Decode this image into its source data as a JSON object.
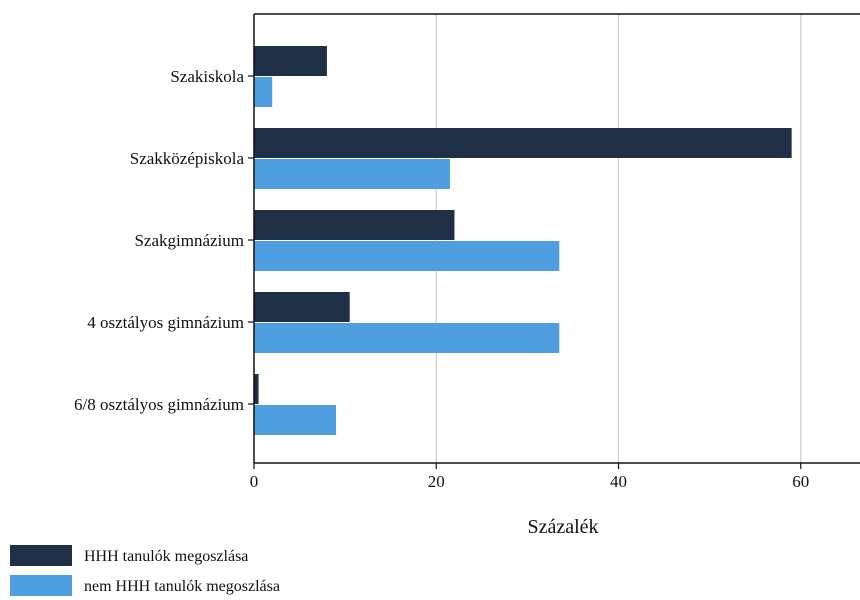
{
  "chart_data": {
    "type": "bar",
    "orientation": "horizontal",
    "categories": [
      "Szakiskola",
      "Szakközépiskola",
      "Szakgimnázium",
      "4 osztályos gimnázium",
      "6/8 osztályos gimnázium"
    ],
    "series": [
      {
        "name": "HHH tanulók megoszlása",
        "color": "#1f2f45",
        "values": [
          8,
          59,
          22,
          10.5,
          0.5
        ]
      },
      {
        "name": "nem HHH tanulók megoszlása",
        "color": "#4f9fe0",
        "values": [
          2,
          21.5,
          33.5,
          33.5,
          9
        ]
      }
    ],
    "xlabel": "Százalék",
    "xticks": [
      0,
      20,
      40,
      60
    ],
    "xlim": [
      0,
      66.5
    ],
    "grid": "vertical",
    "legend_position": "bottom-left"
  }
}
